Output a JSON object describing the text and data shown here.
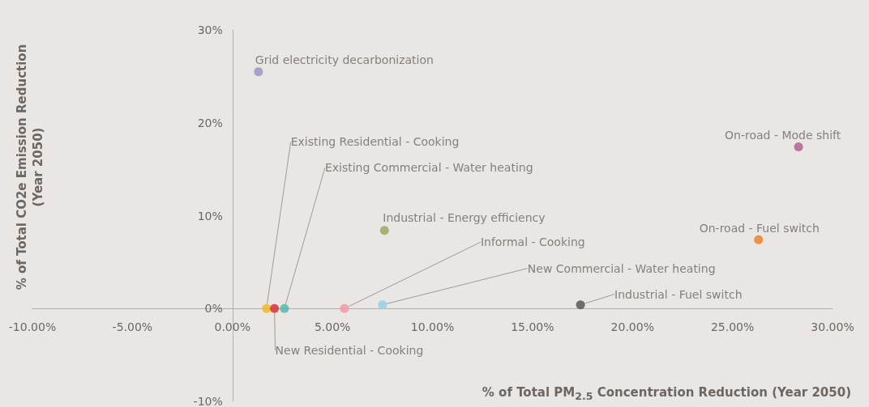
{
  "chart_data": {
    "type": "scatter",
    "xlabel": "% of Total PM$_{2.5}$ Concentration Reduction (Year 2050)",
    "ylabel": "% of Total CO2e Emission Reduction\n(Year 2050)",
    "xlim": [
      -10,
      30
    ],
    "ylim": [
      -10,
      30
    ],
    "xticks": [
      {
        "value": -10,
        "label": "-10.00%"
      },
      {
        "value": -5,
        "label": "-5.00%"
      },
      {
        "value": 0,
        "label": "0.00%"
      },
      {
        "value": 5,
        "label": "5.00%"
      },
      {
        "value": 10,
        "label": "10.00%"
      },
      {
        "value": 15,
        "label": "15.00%"
      },
      {
        "value": 20,
        "label": "20.00%"
      },
      {
        "value": 25,
        "label": "25.00%"
      },
      {
        "value": 30,
        "label": "30.00%"
      }
    ],
    "yticks": [
      {
        "value": -10,
        "label": "-10%"
      },
      {
        "value": 0,
        "label": "0%"
      },
      {
        "value": 10,
        "label": "10%"
      },
      {
        "value": 20,
        "label": "20%"
      },
      {
        "value": 30,
        "label": "30%"
      }
    ],
    "grid": false,
    "legend": false,
    "marker": "circle",
    "series": [
      {
        "name": "Grid electricity decarbonization",
        "color": "#9b8fc0",
        "x": [
          1.3
        ],
        "values": [
          25.5
        ]
      },
      {
        "name": "Existing Residential - Cooking",
        "color": "#f2b51c",
        "x": [
          1.7
        ],
        "values": [
          0
        ]
      },
      {
        "name": "Existing Commercial - Water heating",
        "color": "#4db5a8",
        "x": [
          2.6
        ],
        "values": [
          0
        ]
      },
      {
        "name": "Industrial - Energy efficiency",
        "color": "#9aa35d",
        "x": [
          7.6
        ],
        "values": [
          8.4
        ]
      },
      {
        "name": "Informal - Cooking",
        "color": "#f393a8",
        "x": [
          5.6
        ],
        "values": [
          0
        ]
      },
      {
        "name": "New Commercial - Water heating",
        "color": "#8fd0e3",
        "x": [
          7.5
        ],
        "values": [
          0.4
        ]
      },
      {
        "name": "Industrial - Fuel switch",
        "color": "#4d4d4d",
        "x": [
          17.4
        ],
        "values": [
          0.4
        ]
      },
      {
        "name": "New Residential - Cooking",
        "color": "#d7252c",
        "x": [
          2.1
        ],
        "values": [
          0
        ]
      },
      {
        "name": "On-road - Fuel switch",
        "color": "#f07c1b",
        "x": [
          26.3
        ],
        "values": [
          7.4
        ]
      },
      {
        "name": "On-road - Mode shift",
        "color": "#b05a8c",
        "x": [
          28.3
        ],
        "values": [
          17.4
        ]
      }
    ]
  }
}
